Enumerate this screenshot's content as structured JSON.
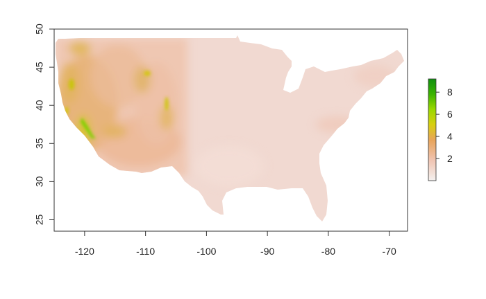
{
  "chart_data": {
    "type": "heatmap",
    "x_ticks": [
      "-120",
      "-110",
      "-100",
      "-90",
      "-80",
      "-70"
    ],
    "y_ticks": [
      "25",
      "30",
      "35",
      "40",
      "45",
      "50"
    ],
    "xlim": [
      -125,
      -67
    ],
    "ylim": [
      23.5,
      50
    ],
    "legend": {
      "position": "right",
      "ticks": [
        "2",
        "4",
        "6",
        "8"
      ],
      "range": [
        0,
        9.2
      ],
      "colors": [
        "#f4f1ef",
        "#f0c4b2",
        "#e8a45a",
        "#d8cf10",
        "#9ad800",
        "#3bb300",
        "#109010"
      ]
    }
  }
}
